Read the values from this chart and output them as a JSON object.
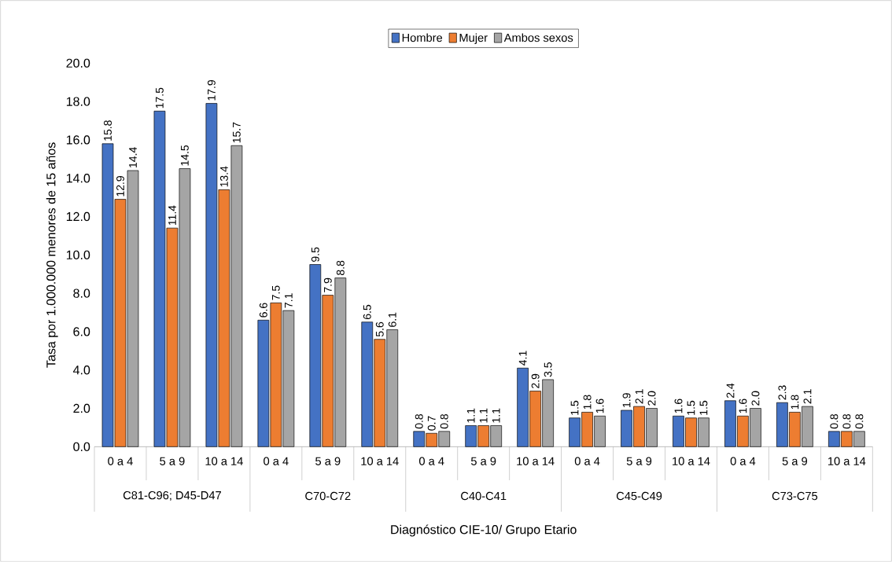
{
  "chart_data": {
    "type": "bar",
    "xlabel": "Diagnóstico CIE-10/ Grupo Etario",
    "ylabel": "Tasa por 1.000.000 menores de 15 años",
    "categories": [
      "0 a 4",
      "5 a 9",
      "10 a 14",
      "0 a 4",
      "5 a 9",
      "10 a 14",
      "0 a 4",
      "5 a 9",
      "10 a 14",
      "0 a 4",
      "5 a 9",
      "10 a 14",
      "0 a 4",
      "5 a 9",
      "10 a 14"
    ],
    "annotations": [
      "C81-C96; D45-D47",
      "C70-C72",
      "C40-C41",
      "C45-C49",
      "C73-C75"
    ],
    "series": [
      {
        "name": "Hombre",
        "color": "#4472c4",
        "values": [
          15.8,
          17.5,
          17.9,
          6.6,
          9.5,
          6.5,
          0.8,
          1.1,
          4.1,
          1.5,
          1.9,
          1.6,
          2.4,
          2.3,
          0.8
        ],
        "value_labels": [
          "15.8",
          "17.5",
          "17.9",
          "6.6",
          "9.5",
          "6.5",
          "0.8",
          "1.1",
          "4.1",
          "1.5",
          "1.9",
          "1.6",
          "2.4",
          "2.3",
          "0.8"
        ]
      },
      {
        "name": "Mujer",
        "color": "#ed7d31",
        "values": [
          12.9,
          11.4,
          13.4,
          7.5,
          7.9,
          5.6,
          0.7,
          1.1,
          2.9,
          1.8,
          2.1,
          1.5,
          1.6,
          1.8,
          0.8
        ],
        "value_labels": [
          "12.9",
          "11.4",
          "13.4",
          "7.5",
          "7.9",
          "5.6",
          "0.7",
          "1.1",
          "2.9",
          "1.8",
          "2.1",
          "1.5",
          "1.6",
          "1.8",
          "0.8"
        ]
      },
      {
        "name": "Ambos sexos",
        "color": "#a5a5a5",
        "values": [
          14.4,
          14.5,
          15.7,
          7.1,
          8.8,
          6.1,
          0.8,
          1.1,
          3.5,
          1.6,
          2.0,
          1.5,
          2.0,
          2.1,
          0.8
        ],
        "value_labels": [
          "14.4",
          "14.5",
          "15.7",
          "7.1",
          "8.8",
          "6.1",
          "0.8",
          "1.1",
          "3.5",
          "1.6",
          "2.0",
          "1.5",
          "2.0",
          "2.1",
          "0.8"
        ]
      }
    ],
    "ylim": [
      0,
      20
    ],
    "yticks": [
      {
        "value": 0,
        "label": "0.0"
      },
      {
        "value": 2,
        "label": "2.0"
      },
      {
        "value": 4,
        "label": "4.0"
      },
      {
        "value": 6,
        "label": "6.0"
      },
      {
        "value": 8,
        "label": "8.0"
      },
      {
        "value": 10,
        "label": "10.0"
      },
      {
        "value": 12,
        "label": "12.0"
      },
      {
        "value": 14,
        "label": "14.0"
      },
      {
        "value": 16,
        "label": "16.0"
      },
      {
        "value": 18,
        "label": "18.0"
      },
      {
        "value": 20,
        "label": "20.0"
      }
    ],
    "legend": "top"
  }
}
